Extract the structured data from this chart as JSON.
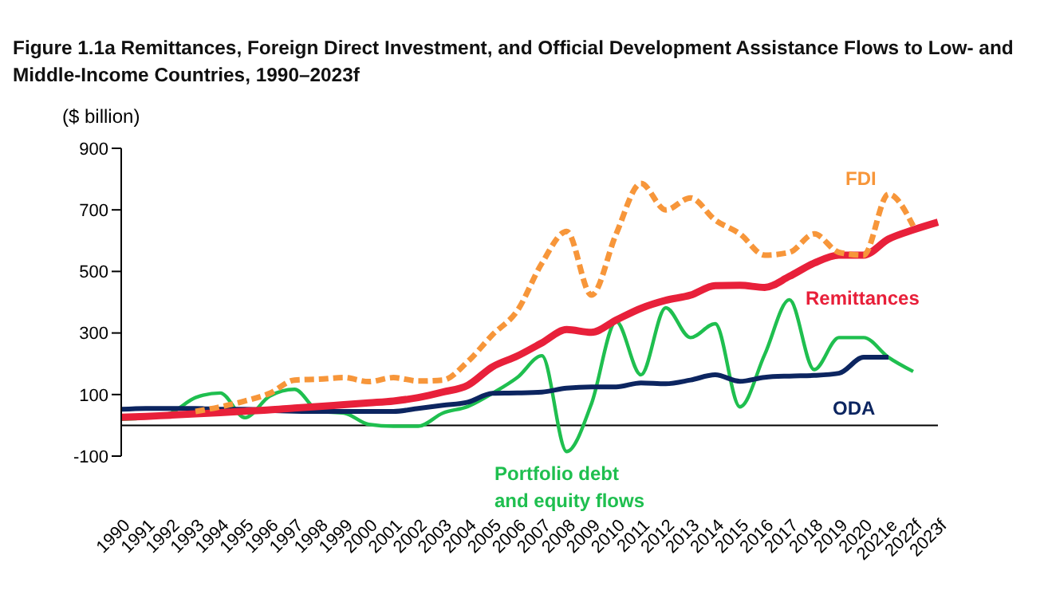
{
  "chart_data": {
    "type": "line",
    "title": "Figure 1.1a Remittances, Foreign Direct Investment, and Official Development Assistance Flows to Low- and Middle-Income Countries, 1990–2023f",
    "ylabel": "($ billion)",
    "categories": [
      "1990",
      "1991",
      "1992",
      "1993",
      "1994",
      "1995",
      "1996",
      "1997",
      "1998",
      "1999",
      "2000",
      "2001",
      "2002",
      "2003",
      "2004",
      "2005",
      "2006",
      "2007",
      "2008",
      "2009",
      "2010",
      "2011",
      "2012",
      "2013",
      "2014",
      "2015",
      "2016",
      "2017",
      "2018",
      "2019",
      "2020",
      "2021e",
      "2022f",
      "2023f"
    ],
    "ylim": [
      -100,
      900
    ],
    "yticks": [
      -100,
      100,
      300,
      500,
      700,
      900
    ],
    "legend": false,
    "marker": "none",
    "ref_lines": [
      {
        "axis": "y",
        "value": 0,
        "color": "#000000"
      }
    ],
    "series": [
      {
        "name": "FDI",
        "color": "#f7963a",
        "line_style": "dashed",
        "values": [
          null,
          null,
          null,
          45,
          60,
          79,
          104,
          147,
          150,
          155,
          142,
          155,
          144,
          147,
          207,
          294,
          372,
          527,
          630,
          423,
          622,
          786,
          700,
          739,
          667,
          622,
          553,
          562,
          622,
          562,
          553,
          751,
          648,
          null
        ]
      },
      {
        "name": "Remittances",
        "color": "#e8203a",
        "line_style": "solid",
        "values": [
          26,
          29,
          33,
          37,
          41,
          46,
          50,
          56,
          61,
          67,
          73,
          79,
          90,
          108,
          130,
          190,
          225,
          268,
          311,
          302,
          342,
          380,
          406,
          423,
          454,
          455,
          448,
          484,
          527,
          553,
          553,
          605,
          635,
          660
        ]
      },
      {
        "name": "ODA",
        "color": "#0c2560",
        "line_style": "solid",
        "values": [
          52,
          55,
          55,
          55,
          52,
          52,
          48,
          46,
          45,
          45,
          45,
          45,
          55,
          65,
          75,
          104,
          105,
          108,
          121,
          125,
          125,
          138,
          135,
          147,
          164,
          143,
          156,
          160,
          162,
          169,
          221,
          221,
          null,
          null
        ]
      },
      {
        "name": "Portfolio debt and equity flows",
        "color": "#1fbf4f",
        "line_style": "solid",
        "values": [
          20,
          25,
          40,
          90,
          105,
          25,
          95,
          117,
          45,
          40,
          3,
          -3,
          -3,
          40,
          61,
          104,
          155,
          226,
          -85,
          70,
          337,
          164,
          382,
          285,
          330,
          60,
          230,
          408,
          181,
          285,
          285,
          221,
          175,
          null
        ]
      }
    ]
  }
}
